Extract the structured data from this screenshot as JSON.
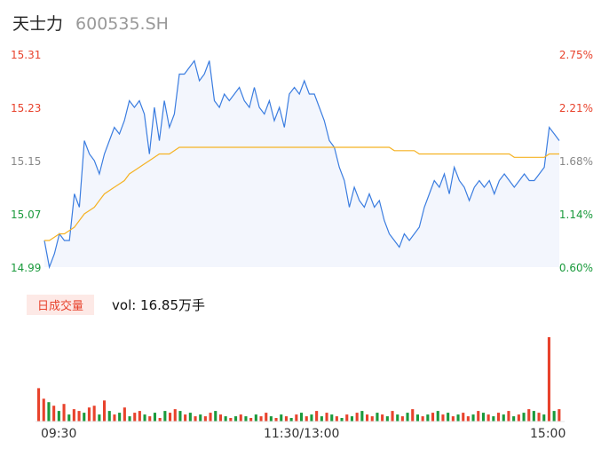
{
  "header": {
    "name": "天士力",
    "code": "600535.SH"
  },
  "colors": {
    "up": "#e8422c",
    "down": "#1a9a3c",
    "neutral": "#888888",
    "price_line": "#3b7de0",
    "avg_line": "#f5b223",
    "area_fill": "#f3f6fd"
  },
  "chart_data": [
    {
      "type": "line",
      "title": "",
      "y_ticks": [
        "15.31",
        "15.23",
        "15.15",
        "15.07",
        "14.99"
      ],
      "y_right_ticks": [
        "2.75%",
        "2.21%",
        "1.68%",
        "1.14%",
        "0.60%"
      ],
      "ylim": [
        14.99,
        15.31
      ],
      "x_ticks": [
        "09:30",
        "11:30/13:00",
        "15:00"
      ],
      "series": [
        {
          "role": "price",
          "values": [
            15.03,
            14.99,
            15.01,
            15.04,
            15.03,
            15.03,
            15.1,
            15.08,
            15.18,
            15.16,
            15.15,
            15.13,
            15.16,
            15.18,
            15.2,
            15.19,
            15.21,
            15.24,
            15.23,
            15.24,
            15.22,
            15.16,
            15.23,
            15.18,
            15.24,
            15.2,
            15.22,
            15.28,
            15.28,
            15.29,
            15.3,
            15.27,
            15.28,
            15.3,
            15.24,
            15.23,
            15.25,
            15.24,
            15.25,
            15.26,
            15.24,
            15.23,
            15.26,
            15.23,
            15.22,
            15.24,
            15.21,
            15.23,
            15.2,
            15.25,
            15.26,
            15.25,
            15.27,
            15.25,
            15.25,
            15.23,
            15.21,
            15.18,
            15.17,
            15.14,
            15.12,
            15.08,
            15.11,
            15.09,
            15.08,
            15.1,
            15.08,
            15.09,
            15.06,
            15.04,
            15.03,
            15.02,
            15.04,
            15.03,
            15.04,
            15.05,
            15.08,
            15.1,
            15.12,
            15.11,
            15.13,
            15.1,
            15.14,
            15.12,
            15.11,
            15.09,
            15.11,
            15.12,
            15.11,
            15.12,
            15.1,
            15.12,
            15.13,
            15.12,
            15.11,
            15.12,
            15.13,
            15.12,
            15.12,
            15.13,
            15.14,
            15.2,
            15.19,
            15.18
          ]
        },
        {
          "role": "average",
          "values": [
            15.03,
            15.03,
            15.035,
            15.04,
            15.04,
            15.045,
            15.05,
            15.06,
            15.07,
            15.075,
            15.08,
            15.09,
            15.1,
            15.105,
            15.11,
            15.115,
            15.12,
            15.13,
            15.135,
            15.14,
            15.145,
            15.15,
            15.155,
            15.16,
            15.16,
            15.16,
            15.165,
            15.17,
            15.17,
            15.17,
            15.17,
            15.17,
            15.17,
            15.17,
            15.17,
            15.17,
            15.17,
            15.17,
            15.17,
            15.17,
            15.17,
            15.17,
            15.17,
            15.17,
            15.17,
            15.17,
            15.17,
            15.17,
            15.17,
            15.17,
            15.17,
            15.17,
            15.17,
            15.17,
            15.17,
            15.17,
            15.17,
            15.17,
            15.17,
            15.17,
            15.17,
            15.17,
            15.17,
            15.17,
            15.17,
            15.17,
            15.17,
            15.17,
            15.17,
            15.17,
            15.165,
            15.165,
            15.165,
            15.165,
            15.165,
            15.16,
            15.16,
            15.16,
            15.16,
            15.16,
            15.16,
            15.16,
            15.16,
            15.16,
            15.16,
            15.16,
            15.16,
            15.16,
            15.16,
            15.16,
            15.16,
            15.16,
            15.16,
            15.16,
            15.155,
            15.155,
            15.155,
            15.155,
            15.155,
            15.155,
            15.155,
            15.16,
            15.16,
            15.16
          ]
        }
      ]
    },
    {
      "type": "bar",
      "title": "",
      "label": "日成交量",
      "summary": "vol: 16.85万手",
      "values": [
        38,
        26,
        22,
        18,
        12,
        20,
        8,
        14,
        12,
        10,
        16,
        18,
        8,
        24,
        12,
        8,
        10,
        16,
        6,
        10,
        12,
        8,
        6,
        10,
        4,
        12,
        10,
        14,
        12,
        8,
        10,
        6,
        8,
        6,
        10,
        12,
        8,
        6,
        4,
        6,
        8,
        6,
        4,
        8,
        6,
        10,
        6,
        4,
        8,
        6,
        4,
        8,
        10,
        6,
        8,
        12,
        6,
        10,
        8,
        6,
        4,
        8,
        6,
        10,
        12,
        8,
        6,
        10,
        8,
        6,
        12,
        8,
        6,
        10,
        14,
        8,
        6,
        8,
        10,
        12,
        8,
        10,
        6,
        8,
        10,
        6,
        8,
        12,
        10,
        8,
        6,
        10,
        8,
        12,
        6,
        8,
        10,
        14,
        12,
        10,
        8,
        96,
        12,
        14
      ],
      "colors_seq": [
        "up",
        "up",
        "down",
        "up",
        "down",
        "up",
        "down",
        "up",
        "up",
        "down",
        "up",
        "up",
        "down",
        "up",
        "down",
        "up",
        "down",
        "up",
        "down",
        "up",
        "up",
        "down",
        "up",
        "down",
        "up",
        "down",
        "up",
        "up",
        "down",
        "up",
        "down",
        "up",
        "down",
        "up",
        "up",
        "down",
        "up",
        "down",
        "up",
        "down",
        "up",
        "down",
        "up",
        "down",
        "up",
        "up",
        "down",
        "up",
        "down",
        "up",
        "down",
        "up",
        "down",
        "up",
        "down",
        "up",
        "down",
        "up",
        "down",
        "up",
        "down",
        "up",
        "down",
        "up",
        "down",
        "up",
        "up",
        "down",
        "up",
        "down",
        "up",
        "down",
        "up",
        "down",
        "up",
        "down",
        "up",
        "down",
        "up",
        "down",
        "up",
        "down",
        "up",
        "down",
        "up",
        "up",
        "down",
        "up",
        "down",
        "up",
        "down",
        "up",
        "down",
        "up",
        "down",
        "up",
        "down",
        "up",
        "down",
        "up",
        "down",
        "up",
        "down",
        "up"
      ]
    }
  ]
}
